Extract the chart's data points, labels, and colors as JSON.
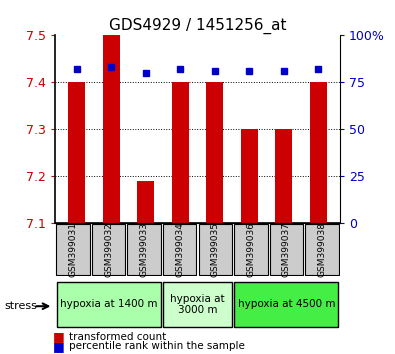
{
  "title": "GDS4929 / 1451256_at",
  "samples": [
    "GSM399031",
    "GSM399032",
    "GSM399033",
    "GSM399034",
    "GSM399035",
    "GSM399036",
    "GSM399037",
    "GSM399038"
  ],
  "bar_values": [
    7.4,
    7.5,
    7.19,
    7.4,
    7.4,
    7.3,
    7.3,
    7.4
  ],
  "percentile_values": [
    82,
    83,
    80,
    82,
    81,
    81,
    81,
    82
  ],
  "ylim_left": [
    7.1,
    7.5
  ],
  "ylim_right": [
    0,
    100
  ],
  "yticks_left": [
    7.1,
    7.2,
    7.3,
    7.4,
    7.5
  ],
  "yticks_right": [
    0,
    25,
    50,
    75,
    100
  ],
  "bar_color": "#cc0000",
  "dot_color": "#0000cc",
  "bar_width": 0.5,
  "groups": [
    {
      "label": "hypoxia at 1400 m",
      "start": 0,
      "end": 3,
      "color": "#aaffaa"
    },
    {
      "label": "hypoxia at\n3000 m",
      "start": 3,
      "end": 5,
      "color": "#ccffcc"
    },
    {
      "label": "hypoxia at 4500 m",
      "start": 5,
      "end": 8,
      "color": "#44ee44"
    }
  ],
  "legend_red_label": "transformed count",
  "legend_blue_label": "percentile rank within the sample",
  "stress_label": "stress",
  "ylabel_left_color": "#cc0000",
  "ylabel_right_color": "#0000cc",
  "tick_label_bg": "#cccccc"
}
